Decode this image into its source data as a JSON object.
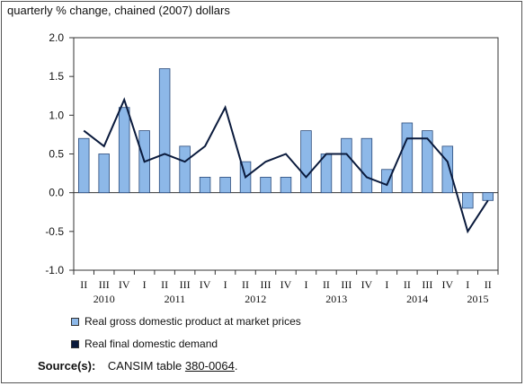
{
  "chart_data": {
    "type": "bar",
    "title": "",
    "ylabel": "quarterly % change, chained (2007) dollars",
    "ylim": [
      -1.0,
      2.0
    ],
    "yticks": [
      "2.0",
      "1.5",
      "1.0",
      "0.5",
      "0.0",
      "-0.5",
      "-1.0"
    ],
    "ytick_values": [
      2.0,
      1.5,
      1.0,
      0.5,
      0.0,
      -0.5,
      -1.0
    ],
    "categories": [
      "II",
      "III",
      "IV",
      "I",
      "II",
      "III",
      "IV",
      "I",
      "II",
      "III",
      "IV",
      "I",
      "II",
      "III",
      "IV",
      "I",
      "II",
      "III",
      "IV",
      "I",
      "II"
    ],
    "years": [
      {
        "label": "2010",
        "first": 0,
        "last": 2
      },
      {
        "label": "2011",
        "first": 3,
        "last": 6
      },
      {
        "label": "2012",
        "first": 7,
        "last": 10
      },
      {
        "label": "2013",
        "first": 11,
        "last": 14
      },
      {
        "label": "2014",
        "first": 15,
        "last": 18
      },
      {
        "label": "2015",
        "first": 19,
        "last": 20
      }
    ],
    "series": [
      {
        "name": "Real gross domestic product at market prices",
        "type": "bar",
        "color": "#8db8e8",
        "values": [
          0.7,
          0.5,
          1.1,
          0.8,
          1.6,
          0.6,
          0.2,
          0.2,
          0.4,
          0.2,
          0.2,
          0.8,
          0.5,
          0.7,
          0.7,
          0.3,
          0.9,
          0.8,
          0.6,
          -0.2,
          -0.1
        ]
      },
      {
        "name": "Real final domestic demand",
        "type": "line",
        "color": "#0a1a3c",
        "values": [
          0.8,
          0.6,
          1.2,
          0.4,
          0.5,
          0.4,
          0.6,
          1.1,
          0.2,
          0.4,
          0.5,
          0.2,
          0.5,
          0.5,
          0.2,
          0.1,
          0.7,
          0.7,
          0.4,
          -0.5,
          -0.1
        ]
      }
    ],
    "grid": false,
    "legend_position": "bottom-left"
  },
  "source": {
    "label": "Source(s):",
    "text": "CANSIM table",
    "link": "380-0064",
    "suffix": "."
  }
}
